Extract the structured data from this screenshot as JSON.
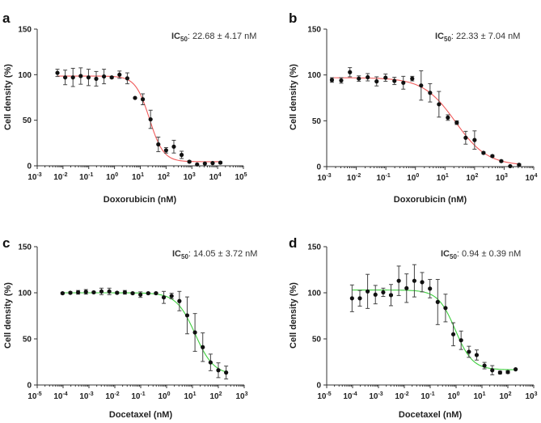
{
  "chart_data": [
    {
      "panel": "a",
      "type": "scatter",
      "fit": "sigmoid",
      "curve_color": "#f05a5a",
      "ic50_label": "IC",
      "ic50_sub": "50",
      "ic50_value": ": 22.68 ± 4.17 nM",
      "xlabel": "Doxorubicin (nM)",
      "ylabel": "Cell density (%)",
      "xscale": "log",
      "xlim_exp": [
        -3,
        5
      ],
      "ylim": [
        0,
        150
      ],
      "yticks": [
        0,
        50,
        100,
        150
      ],
      "xtick_exps": [
        -3,
        -2,
        -1,
        0,
        1,
        2,
        3,
        4,
        5
      ],
      "curve": {
        "top": 98.5,
        "bottom": 4.5,
        "log_ic50": 1.356,
        "hill": 1.6
      },
      "points": [
        {
          "x": 0.0061,
          "y": 102,
          "err": 4
        },
        {
          "x": 0.0122,
          "y": 97,
          "err": 8
        },
        {
          "x": 0.0244,
          "y": 97,
          "err": 10
        },
        {
          "x": 0.0488,
          "y": 98.5,
          "err": 9
        },
        {
          "x": 0.0977,
          "y": 97,
          "err": 9
        },
        {
          "x": 0.195,
          "y": 95.5,
          "err": 8
        },
        {
          "x": 0.39,
          "y": 98,
          "err": 8
        },
        {
          "x": 0.78,
          "y": 97,
          "err": 1
        },
        {
          "x": 1.56,
          "y": 100,
          "err": 4
        },
        {
          "x": 3.13,
          "y": 96,
          "err": 6
        },
        {
          "x": 6.25,
          "y": 74.5,
          "err": 0
        },
        {
          "x": 12.5,
          "y": 73,
          "err": 6
        },
        {
          "x": 25,
          "y": 51,
          "err": 10
        },
        {
          "x": 50,
          "y": 23.5,
          "err": 8
        },
        {
          "x": 100,
          "y": 17,
          "err": 3
        },
        {
          "x": 200,
          "y": 21,
          "err": 7
        },
        {
          "x": 400,
          "y": 12,
          "err": 4
        },
        {
          "x": 800,
          "y": 4.5,
          "err": 1
        },
        {
          "x": 1600,
          "y": 1.5,
          "err": 0
        },
        {
          "x": 3200,
          "y": 2.5,
          "err": 0
        },
        {
          "x": 6400,
          "y": 3,
          "err": 0
        },
        {
          "x": 12800,
          "y": 3.5,
          "err": 1
        }
      ]
    },
    {
      "panel": "b",
      "type": "scatter",
      "fit": "sigmoid",
      "curve_color": "#f05a5a",
      "ic50_label": "IC",
      "ic50_sub": "50",
      "ic50_value": ": 22.33 ± 7.04 nM",
      "xlabel": "Doxorubicin (nM)",
      "ylabel": "Cell density (%)",
      "xscale": "log",
      "xlim_exp": [
        -3,
        4
      ],
      "ylim": [
        0,
        150
      ],
      "yticks": [
        0,
        50,
        100,
        150
      ],
      "xtick_exps": [
        -3,
        -2,
        -1,
        0,
        1,
        2,
        3,
        4
      ],
      "curve": {
        "top": 97,
        "bottom": 1,
        "log_ic50": 1.35,
        "hill": 0.8
      },
      "points": [
        {
          "x": 0.0015,
          "y": 94.5,
          "err": 2.5
        },
        {
          "x": 0.0031,
          "y": 94,
          "err": 3
        },
        {
          "x": 0.0061,
          "y": 103,
          "err": 5
        },
        {
          "x": 0.0122,
          "y": 96,
          "err": 3
        },
        {
          "x": 0.0244,
          "y": 97.5,
          "err": 4
        },
        {
          "x": 0.0488,
          "y": 93,
          "err": 5
        },
        {
          "x": 0.0977,
          "y": 97,
          "err": 4
        },
        {
          "x": 0.195,
          "y": 93.5,
          "err": 4
        },
        {
          "x": 0.39,
          "y": 91.5,
          "err": 7
        },
        {
          "x": 0.78,
          "y": 96,
          "err": 2.5
        },
        {
          "x": 1.56,
          "y": 88.5,
          "err": 16
        },
        {
          "x": 3.13,
          "y": 80.5,
          "err": 10
        },
        {
          "x": 6.25,
          "y": 68,
          "err": 14
        },
        {
          "x": 12.5,
          "y": 53.5,
          "err": 3
        },
        {
          "x": 25,
          "y": 48,
          "err": 2
        },
        {
          "x": 50,
          "y": 31.5,
          "err": 7
        },
        {
          "x": 100,
          "y": 29,
          "err": 10
        },
        {
          "x": 200,
          "y": 15,
          "err": 1
        },
        {
          "x": 400,
          "y": 11.5,
          "err": 1
        },
        {
          "x": 800,
          "y": 6,
          "err": 1
        },
        {
          "x": 1600,
          "y": 0.5,
          "err": 0
        },
        {
          "x": 3200,
          "y": 2,
          "err": 1
        }
      ]
    },
    {
      "panel": "c",
      "type": "scatter",
      "fit": "sigmoid",
      "curve_color": "#3fcf3f",
      "ic50_label": "IC",
      "ic50_sub": "50",
      "ic50_value": ": 14.05 ± 3.72 nM",
      "xlabel": "Docetaxel (nM)",
      "ylabel": "Cell density (%)",
      "xscale": "log",
      "xlim_exp": [
        -5,
        3
      ],
      "ylim": [
        0,
        150
      ],
      "yticks": [
        0,
        50,
        100,
        150
      ],
      "xtick_exps": [
        -5,
        -4,
        -3,
        -2,
        -1,
        0,
        1,
        2,
        3
      ],
      "curve": {
        "top": 100,
        "bottom": 11,
        "log_ic50": 1.1,
        "hill": 1.2
      },
      "points": [
        {
          "x": 9.54e-05,
          "y": 99.5,
          "err": 1
        },
        {
          "x": 0.000191,
          "y": 100,
          "err": 1
        },
        {
          "x": 0.000381,
          "y": 100.5,
          "err": 2
        },
        {
          "x": 0.000763,
          "y": 101,
          "err": 2.5
        },
        {
          "x": 0.00153,
          "y": 100.5,
          "err": 1
        },
        {
          "x": 0.00305,
          "y": 101.5,
          "err": 3.5
        },
        {
          "x": 0.0061,
          "y": 101.5,
          "err": 3.5
        },
        {
          "x": 0.0122,
          "y": 100,
          "err": 1
        },
        {
          "x": 0.0244,
          "y": 100.5,
          "err": 2
        },
        {
          "x": 0.0488,
          "y": 99.5,
          "err": 1
        },
        {
          "x": 0.0977,
          "y": 98,
          "err": 3
        },
        {
          "x": 0.195,
          "y": 99.5,
          "err": 1
        },
        {
          "x": 0.39,
          "y": 99.5,
          "err": 1
        },
        {
          "x": 0.78,
          "y": 95,
          "err": 6.5
        },
        {
          "x": 1.56,
          "y": 96.5,
          "err": 3
        },
        {
          "x": 3.13,
          "y": 91,
          "err": 10.5
        },
        {
          "x": 6.25,
          "y": 75.5,
          "err": 20
        },
        {
          "x": 12.5,
          "y": 57,
          "err": 20.5
        },
        {
          "x": 25,
          "y": 41,
          "err": 15.5
        },
        {
          "x": 50,
          "y": 24.5,
          "err": 9
        },
        {
          "x": 100,
          "y": 16,
          "err": 8
        },
        {
          "x": 200,
          "y": 13.5,
          "err": 7
        }
      ]
    },
    {
      "panel": "d",
      "type": "scatter",
      "fit": "sigmoid",
      "curve_color": "#3fcf3f",
      "ic50_label": "IC",
      "ic50_sub": "50",
      "ic50_value": ": 0.94 ± 0.39 nM",
      "xlabel": "Docetaxel (nM)",
      "ylabel": "Cell density (%)",
      "xscale": "log",
      "xlim_exp": [
        -5,
        3
      ],
      "ylim": [
        0,
        150
      ],
      "yticks": [
        0,
        50,
        100,
        150
      ],
      "xtick_exps": [
        -5,
        -4,
        -3,
        -2,
        -1,
        0,
        1,
        2,
        3
      ],
      "curve": {
        "top": 103,
        "bottom": 16.5,
        "log_ic50": -0.03,
        "hill": 1.3
      },
      "points": [
        {
          "x": 9.54e-05,
          "y": 94,
          "err": 14.5
        },
        {
          "x": 0.000191,
          "y": 94,
          "err": 8.5
        },
        {
          "x": 0.000381,
          "y": 101.5,
          "err": 18.5
        },
        {
          "x": 0.000763,
          "y": 98,
          "err": 10
        },
        {
          "x": 0.00153,
          "y": 100.5,
          "err": 4.5
        },
        {
          "x": 0.00305,
          "y": 97.5,
          "err": 11.5
        },
        {
          "x": 0.0061,
          "y": 113,
          "err": 16
        },
        {
          "x": 0.0122,
          "y": 105,
          "err": 15.5
        },
        {
          "x": 0.0244,
          "y": 113,
          "err": 17.5
        },
        {
          "x": 0.0488,
          "y": 111.5,
          "err": 10.5
        },
        {
          "x": 0.0977,
          "y": 104.5,
          "err": 10
        },
        {
          "x": 0.195,
          "y": 90,
          "err": 24.5
        },
        {
          "x": 0.39,
          "y": 83.5,
          "err": 15
        },
        {
          "x": 0.78,
          "y": 55,
          "err": 12.5
        },
        {
          "x": 1.56,
          "y": 48.5,
          "err": 10
        },
        {
          "x": 3.13,
          "y": 36,
          "err": 6
        },
        {
          "x": 6.25,
          "y": 32.5,
          "err": 5.5
        },
        {
          "x": 12.5,
          "y": 21,
          "err": 3.5
        },
        {
          "x": 25,
          "y": 16,
          "err": 5
        },
        {
          "x": 50,
          "y": 13.5,
          "err": 1.5
        },
        {
          "x": 100,
          "y": 14,
          "err": 1.5
        },
        {
          "x": 200,
          "y": 17,
          "err": 0
        }
      ]
    }
  ]
}
